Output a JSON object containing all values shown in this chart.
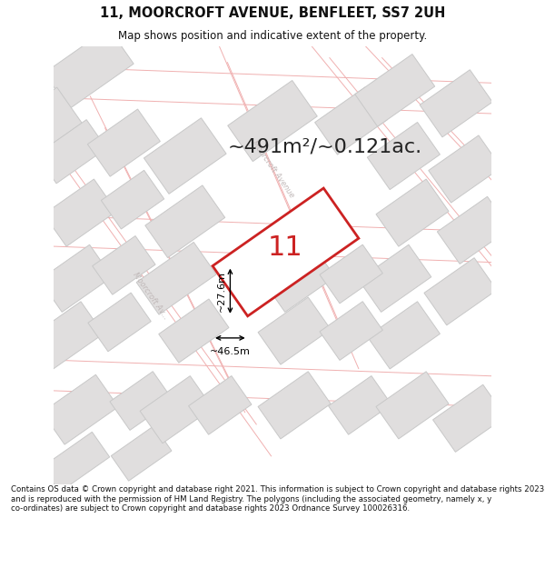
{
  "title": "11, MOORCROFT AVENUE, BENFLEET, SS7 2UH",
  "subtitle": "Map shows position and indicative extent of the property.",
  "footer": "Contains OS data © Crown copyright and database right 2021. This information is subject to Crown copyright and database rights 2023 and is reproduced with the permission of HM Land Registry. The polygons (including the associated geometry, namely x, y co-ordinates) are subject to Crown copyright and database rights 2023 Ordnance Survey 100026316.",
  "area_text": "~491m²/~0.121ac.",
  "width_label": "~46.5m",
  "height_label": "~27.6m",
  "plot_number": "11",
  "bg_color": "#ffffff",
  "map_bg": "#f2f0f0",
  "road_color": "#ffffff",
  "building_fill": "#e0dede",
  "building_edge": "#c8c8c8",
  "highlight_color": "#cc2222",
  "road_line_color": "#f0b0b0",
  "road_label_color": "#c0b8b8",
  "title_color": "#111111",
  "footer_color": "#111111",
  "title_fontsize": 10.5,
  "subtitle_fontsize": 8.5,
  "area_fontsize": 16,
  "plot_num_fontsize": 22,
  "footer_fontsize": 6.2
}
